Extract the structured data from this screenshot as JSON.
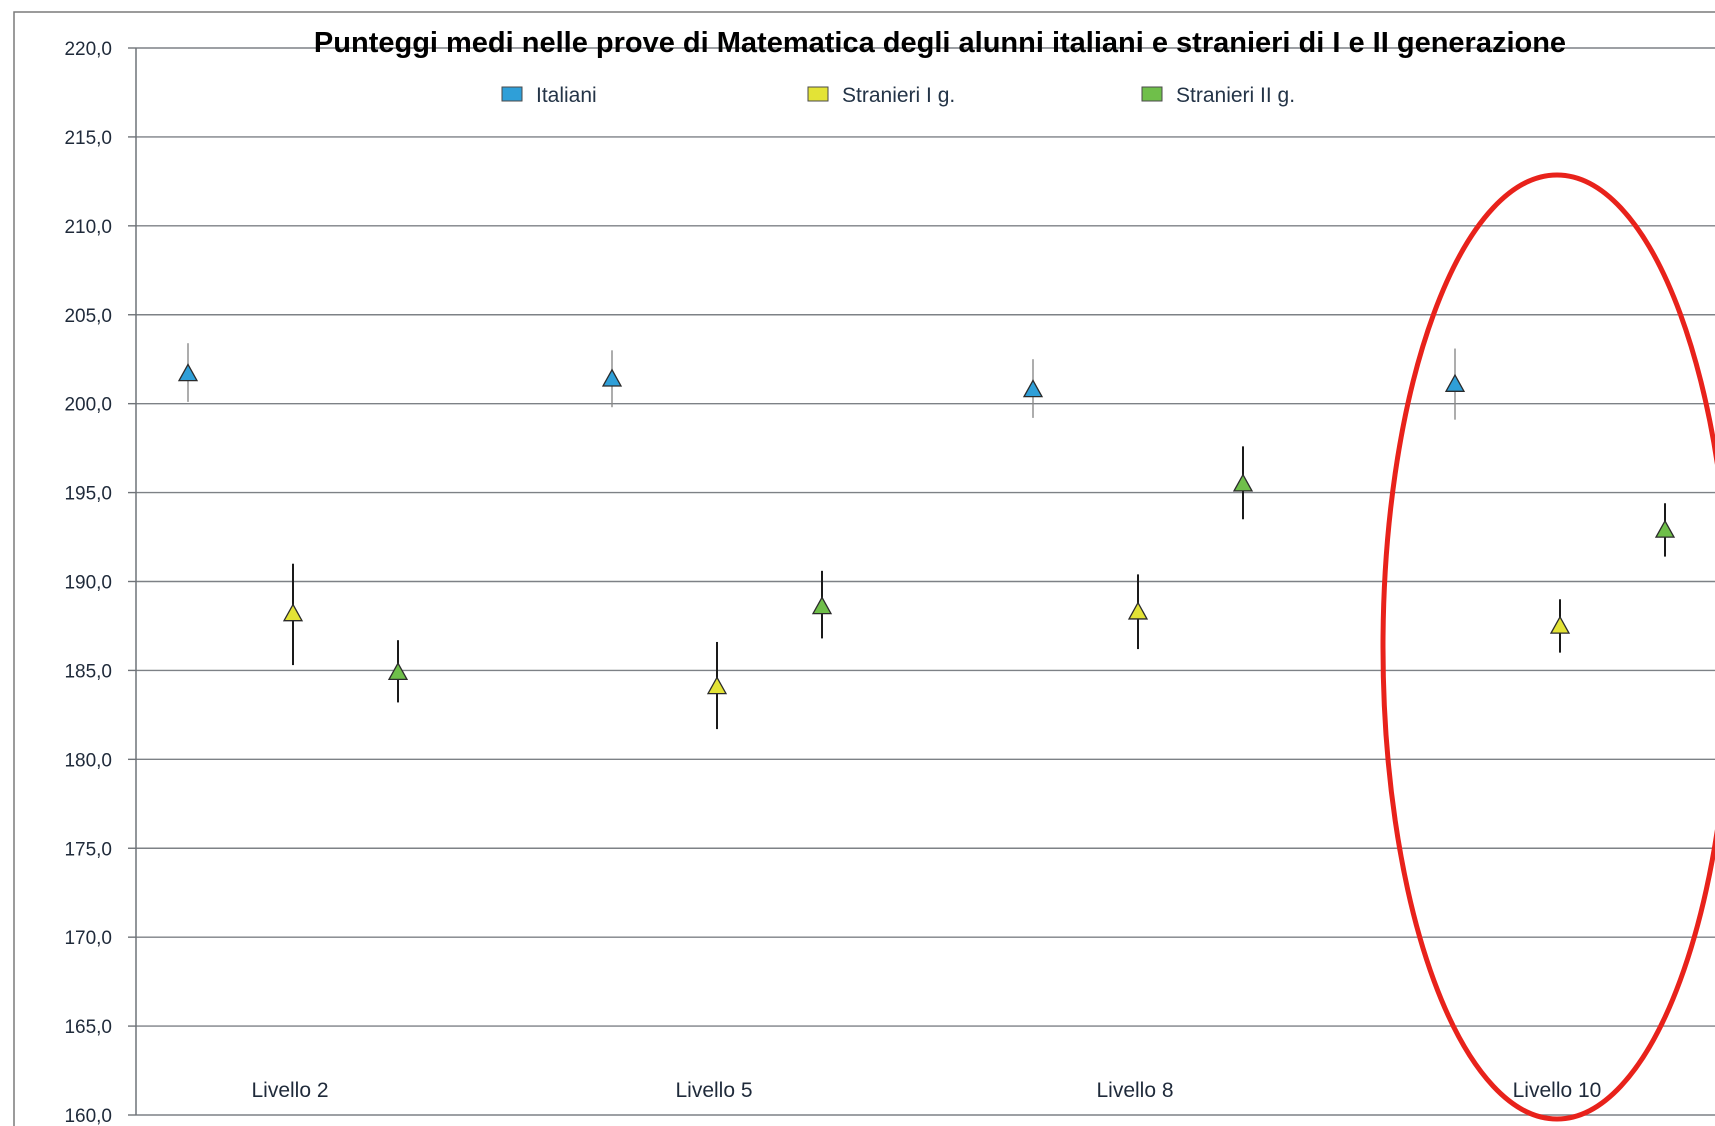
{
  "chart_data": {
    "type": "scatter",
    "title": "Punteggi medi nelle prove di Matematica degli alunni italiani e stranieri di I e II generazione",
    "xlabel": "",
    "ylabel": "",
    "categories": [
      "Livello 2",
      "Livello 5",
      "Livello 8",
      "Livello 10"
    ],
    "ylim": [
      160,
      220
    ],
    "yticks": [
      "160,0",
      "165,0",
      "170,0",
      "175,0",
      "180,0",
      "185,0",
      "190,0",
      "195,0",
      "200,0",
      "205,0",
      "210,0",
      "215,0",
      "220,0"
    ],
    "grid": true,
    "legend_position": "top",
    "marker": "triangle",
    "series": [
      {
        "name": "Italiani",
        "color": "#2f9fd8",
        "values": [
          201.7,
          201.4,
          200.8,
          201.1
        ],
        "lower": [
          200.1,
          199.8,
          199.2,
          199.1
        ],
        "upper": [
          203.4,
          203.0,
          202.5,
          203.1
        ]
      },
      {
        "name": "Stranieri I g.",
        "color": "#e3e336",
        "values": [
          188.2,
          184.1,
          188.3,
          187.5
        ],
        "lower": [
          185.3,
          181.7,
          186.2,
          186.0
        ],
        "upper": [
          191.0,
          186.6,
          190.4,
          189.0
        ]
      },
      {
        "name": "Stranieri II g.",
        "color": "#6fbf4a",
        "values": [
          184.9,
          188.6,
          195.5,
          192.9
        ],
        "lower": [
          183.2,
          186.8,
          193.5,
          191.4
        ],
        "upper": [
          186.7,
          190.6,
          197.6,
          194.4
        ]
      }
    ],
    "annotation": {
      "type": "ellipse",
      "color": "#e8221b",
      "highlights": "Livello 10"
    }
  }
}
